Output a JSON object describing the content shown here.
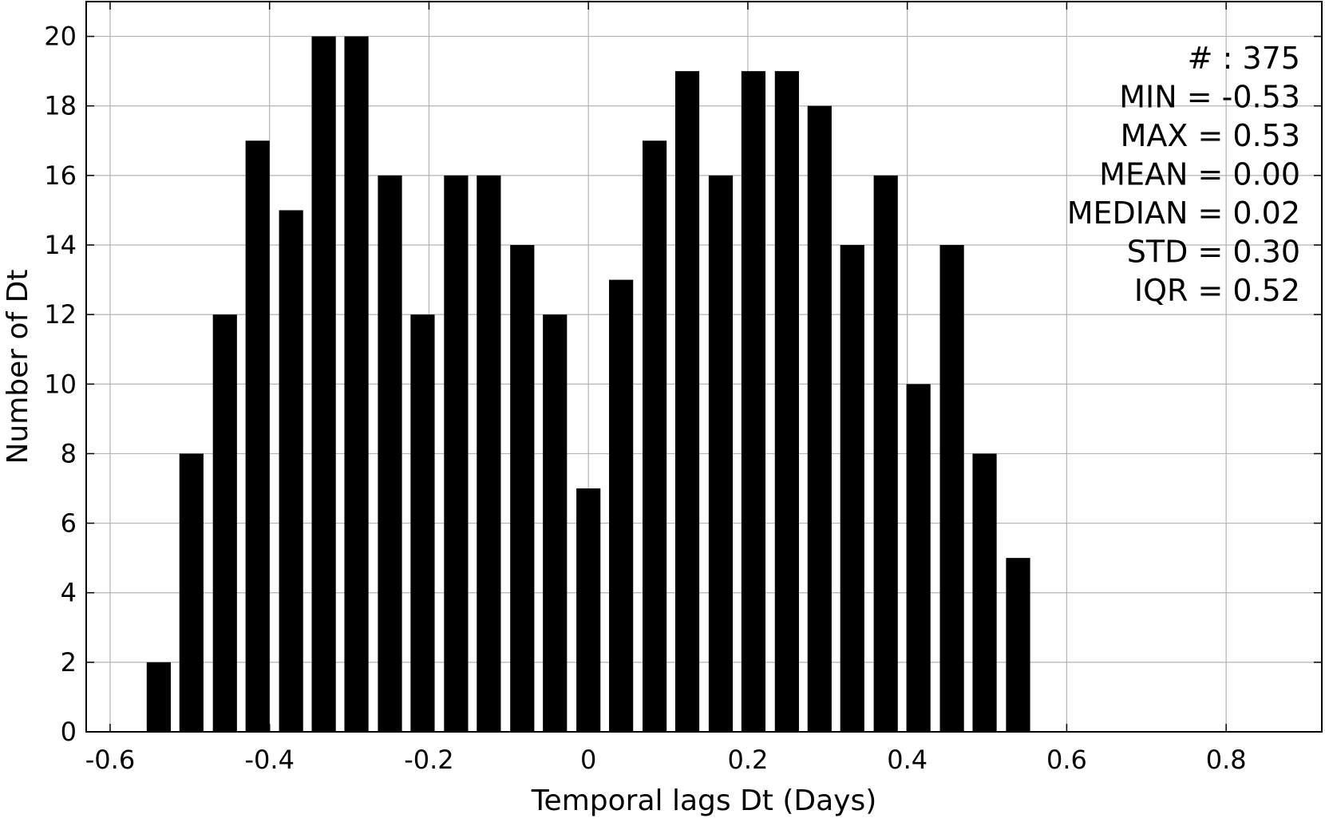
{
  "chart_data": {
    "type": "bar",
    "title": "",
    "xlabel": "Temporal lags Dt (Days)",
    "ylabel": "Number of Dt",
    "xlim": [
      -0.63,
      0.92
    ],
    "ylim": [
      0,
      21
    ],
    "xticks": [
      -0.6,
      -0.4,
      -0.2,
      0,
      0.2,
      0.4,
      0.6,
      0.8
    ],
    "xtick_labels": [
      "-0.6",
      "-0.4",
      "-0.2",
      "0",
      "0.2",
      "0.4",
      "0.6",
      "0.8"
    ],
    "yticks": [
      0,
      2,
      4,
      6,
      8,
      10,
      12,
      14,
      16,
      18,
      20
    ],
    "ytick_labels": [
      "0",
      "2",
      "4",
      "6",
      "8",
      "10",
      "12",
      "14",
      "16",
      "18",
      "20"
    ],
    "grid": true,
    "bar_color": "#000000",
    "grid_color": "#b3b3b3",
    "bin_width": 0.0414,
    "x": [
      -0.539,
      -0.498,
      -0.456,
      -0.415,
      -0.373,
      -0.332,
      -0.291,
      -0.249,
      -0.208,
      -0.166,
      -0.125,
      -0.083,
      -0.042,
      0.0,
      0.041,
      0.083,
      0.124,
      0.166,
      0.207,
      0.249,
      0.29,
      0.331,
      0.373,
      0.414,
      0.456,
      0.497,
      0.539
    ],
    "values": [
      2,
      8,
      12,
      17,
      15,
      20,
      20,
      16,
      12,
      16,
      16,
      14,
      12,
      7,
      13,
      17,
      19,
      16,
      19,
      19,
      18,
      14,
      16,
      10,
      14,
      8,
      5
    ],
    "annotations": [
      "# : 375",
      "MIN = -0.53",
      "MAX =  0.53",
      "MEAN = 0.00",
      "MEDIAN = 0.02",
      "STD = 0.30",
      "IQR = 0.52"
    ]
  }
}
